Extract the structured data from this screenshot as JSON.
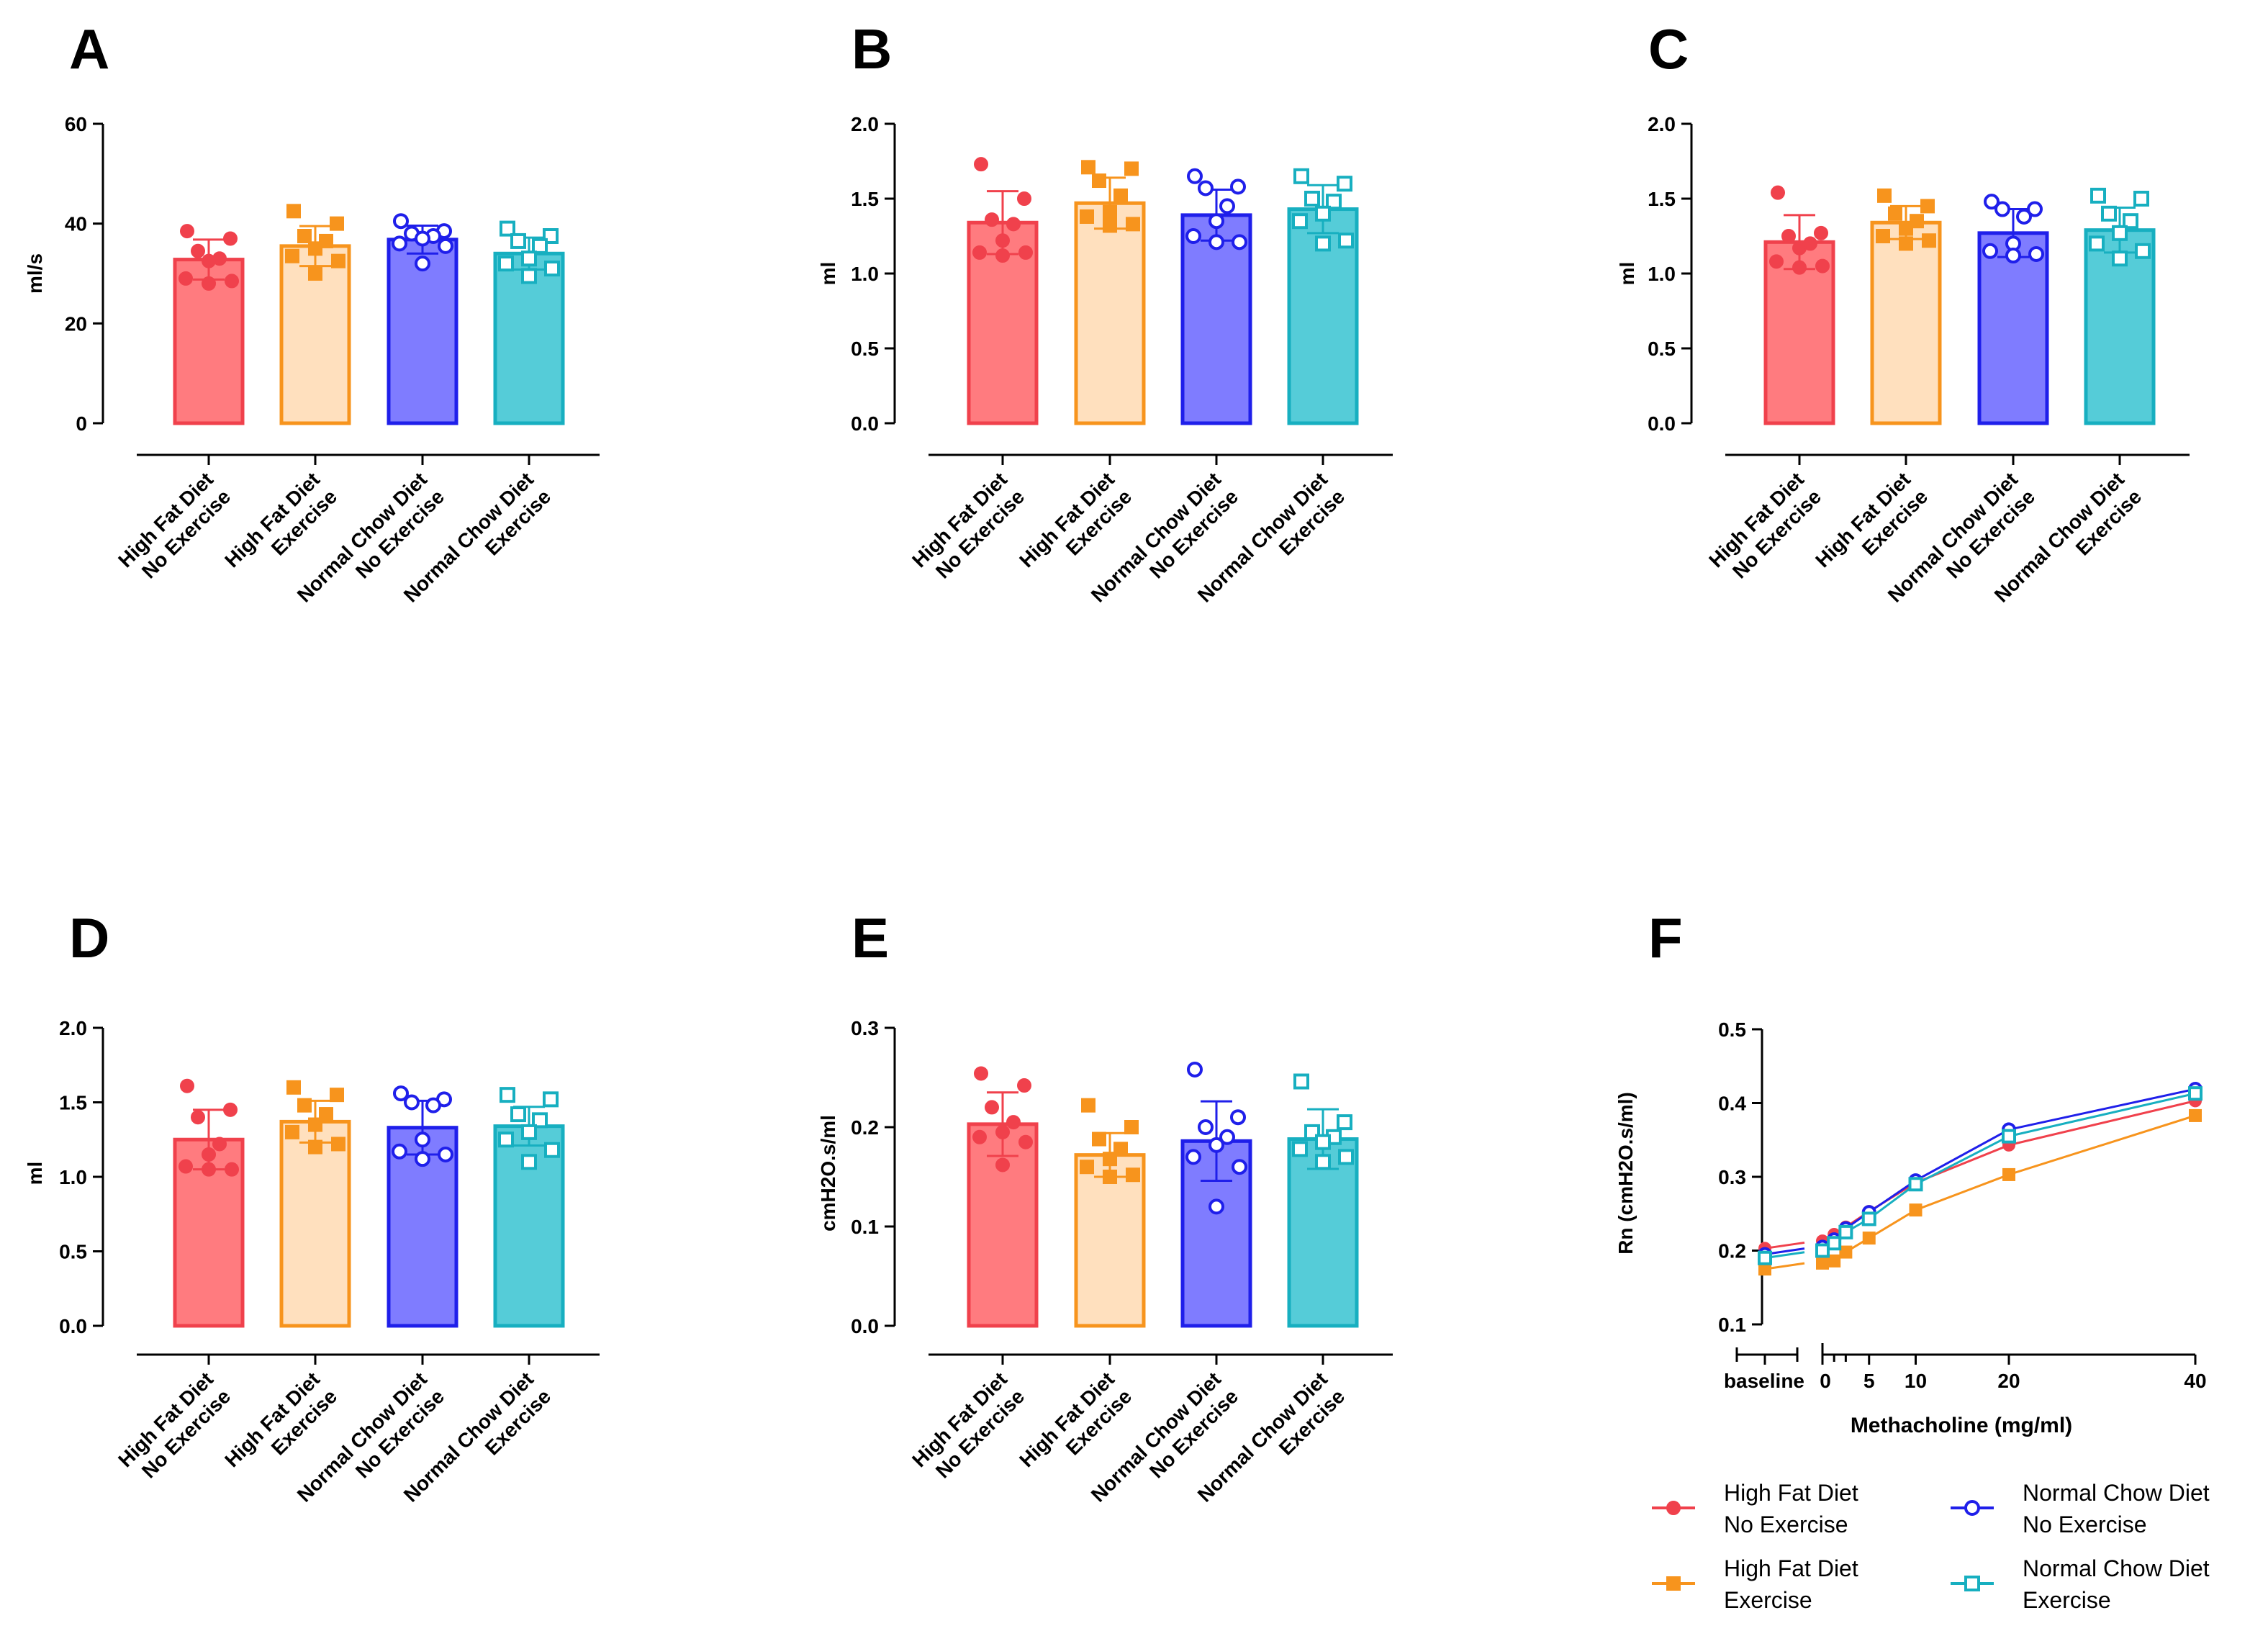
{
  "colors": {
    "hfd_ne": "#F0414C",
    "hfd_ex": "#F7941D",
    "ncd_ne": "#1F1FEA",
    "ncd_ex": "#17AFC0",
    "hfd_ne_fill": "#FF7B7F",
    "hfd_ex_fill": "#FFE0BE",
    "ncd_ne_fill": "#7F7CFF",
    "ncd_ex_fill": "#55CCD8"
  },
  "groups": [
    {
      "key": "hfd_ne",
      "line1": "High Fat Diet",
      "line2": "No Exercise",
      "marker": "filled-circle"
    },
    {
      "key": "hfd_ex",
      "line1": "High Fat Diet",
      "line2": "Exercise",
      "marker": "filled-square"
    },
    {
      "key": "ncd_ne",
      "line1": "Normal Chow Diet",
      "line2": "No Exercise",
      "marker": "open-circle"
    },
    {
      "key": "ncd_ex",
      "line1": "Normal Chow Diet",
      "line2": "Exercise",
      "marker": "open-square"
    }
  ],
  "legend": [
    {
      "key": "hfd_ne",
      "line1": "High Fat Diet",
      "line2": "No Exercise"
    },
    {
      "key": "ncd_ne",
      "line1": "Normal Chow Diet",
      "line2": "No Exercise"
    },
    {
      "key": "hfd_ex",
      "line1": "High Fat Diet",
      "line2": "Exercise"
    },
    {
      "key": "ncd_ex",
      "line1": "Normal Chow Diet",
      "line2": "Exercise"
    }
  ],
  "chart_data": [
    {
      "panel": "A",
      "type": "bar",
      "ylabel": "ml/s",
      "ylim": [
        0,
        60
      ],
      "yticks": [
        0,
        20,
        40,
        60
      ],
      "ytick_labels": [
        "0",
        "20",
        "40",
        "60"
      ],
      "series": [
        {
          "key": "hfd_ne",
          "mean": 32.8,
          "sd": 4.0,
          "points": [
            38.5,
            37.0,
            34.5,
            33.0,
            32.5,
            29.0,
            28.5,
            28.0
          ]
        },
        {
          "key": "hfd_ex",
          "mean": 35.5,
          "sd": 4.0,
          "points": [
            42.5,
            40.0,
            37.5,
            36.5,
            35.0,
            33.5,
            32.5,
            30.0
          ]
        },
        {
          "key": "ncd_ne",
          "mean": 36.8,
          "sd": 2.8,
          "points": [
            40.5,
            38.5,
            38.0,
            37.5,
            37.0,
            36.0,
            35.5,
            32.0
          ]
        },
        {
          "key": "ncd_ex",
          "mean": 34.0,
          "sd": 3.2,
          "points": [
            39.0,
            37.5,
            36.5,
            35.5,
            33.0,
            32.0,
            31.0,
            29.5
          ]
        }
      ]
    },
    {
      "panel": "B",
      "type": "bar",
      "ylabel": "ml",
      "ylim": [
        0,
        2.0
      ],
      "yticks": [
        0,
        0.5,
        1.0,
        1.5,
        2.0
      ],
      "ytick_labels": [
        "0.0",
        "0.5",
        "1.0",
        "1.5",
        "2.0"
      ],
      "series": [
        {
          "key": "hfd_ne",
          "mean": 1.34,
          "sd": 0.21,
          "points": [
            1.73,
            1.5,
            1.36,
            1.33,
            1.22,
            1.14,
            1.14,
            1.12
          ]
        },
        {
          "key": "hfd_ex",
          "mean": 1.47,
          "sd": 0.17,
          "points": [
            1.71,
            1.7,
            1.62,
            1.52,
            1.41,
            1.38,
            1.33,
            1.32
          ]
        },
        {
          "key": "ncd_ne",
          "mean": 1.39,
          "sd": 0.17,
          "points": [
            1.65,
            1.58,
            1.57,
            1.45,
            1.35,
            1.25,
            1.21,
            1.21
          ]
        },
        {
          "key": "ncd_ex",
          "mean": 1.43,
          "sd": 0.16,
          "points": [
            1.65,
            1.6,
            1.5,
            1.48,
            1.4,
            1.35,
            1.22,
            1.2
          ]
        }
      ]
    },
    {
      "panel": "C",
      "type": "bar",
      "ylabel": "ml",
      "ylim": [
        0,
        2.0
      ],
      "yticks": [
        0,
        0.5,
        1.0,
        1.5,
        2.0
      ],
      "ytick_labels": [
        "0.0",
        "0.5",
        "1.0",
        "1.5",
        "2.0"
      ],
      "series": [
        {
          "key": "hfd_ne",
          "mean": 1.21,
          "sd": 0.18,
          "points": [
            1.54,
            1.27,
            1.25,
            1.2,
            1.17,
            1.08,
            1.05,
            1.04
          ]
        },
        {
          "key": "hfd_ex",
          "mean": 1.34,
          "sd": 0.11,
          "points": [
            1.52,
            1.45,
            1.4,
            1.35,
            1.3,
            1.25,
            1.22,
            1.2
          ]
        },
        {
          "key": "ncd_ne",
          "mean": 1.27,
          "sd": 0.16,
          "points": [
            1.48,
            1.43,
            1.43,
            1.38,
            1.2,
            1.15,
            1.13,
            1.12
          ]
        },
        {
          "key": "ncd_ex",
          "mean": 1.29,
          "sd": 0.15,
          "points": [
            1.52,
            1.5,
            1.4,
            1.35,
            1.27,
            1.2,
            1.15,
            1.1
          ]
        }
      ]
    },
    {
      "panel": "D",
      "type": "bar",
      "ylabel": "ml",
      "ylim": [
        0,
        2.0
      ],
      "yticks": [
        0,
        0.5,
        1.0,
        1.5,
        2.0
      ],
      "ytick_labels": [
        "0.0",
        "0.5",
        "1.0",
        "1.5",
        "2.0"
      ],
      "series": [
        {
          "key": "hfd_ne",
          "mean": 1.25,
          "sd": 0.2,
          "points": [
            1.61,
            1.45,
            1.4,
            1.22,
            1.15,
            1.07,
            1.05,
            1.05
          ]
        },
        {
          "key": "hfd_ex",
          "mean": 1.37,
          "sd": 0.14,
          "points": [
            1.6,
            1.55,
            1.48,
            1.42,
            1.35,
            1.3,
            1.22,
            1.2
          ]
        },
        {
          "key": "ncd_ne",
          "mean": 1.33,
          "sd": 0.18,
          "points": [
            1.56,
            1.52,
            1.5,
            1.48,
            1.25,
            1.17,
            1.15,
            1.12
          ]
        },
        {
          "key": "ncd_ex",
          "mean": 1.34,
          "sd": 0.13,
          "points": [
            1.55,
            1.52,
            1.42,
            1.38,
            1.3,
            1.25,
            1.18,
            1.1
          ]
        }
      ]
    },
    {
      "panel": "E",
      "type": "bar",
      "ylabel": "cmH2O.s/ml",
      "ylim": [
        0,
        0.3
      ],
      "yticks": [
        0,
        0.1,
        0.2,
        0.3
      ],
      "ytick_labels": [
        "0.0",
        "0.1",
        "0.2",
        "0.3"
      ],
      "series": [
        {
          "key": "hfd_ne",
          "mean": 0.203,
          "sd": 0.032,
          "points": [
            0.254,
            0.242,
            0.22,
            0.205,
            0.195,
            0.19,
            0.185,
            0.162
          ]
        },
        {
          "key": "hfd_ex",
          "mean": 0.172,
          "sd": 0.022,
          "points": [
            0.222,
            0.2,
            0.188,
            0.178,
            0.168,
            0.16,
            0.152,
            0.15
          ]
        },
        {
          "key": "ncd_ne",
          "mean": 0.186,
          "sd": 0.04,
          "points": [
            0.258,
            0.21,
            0.2,
            0.19,
            0.182,
            0.17,
            0.16,
            0.12
          ]
        },
        {
          "key": "ncd_ex",
          "mean": 0.188,
          "sd": 0.03,
          "points": [
            0.246,
            0.205,
            0.195,
            0.19,
            0.185,
            0.178,
            0.17,
            0.165
          ]
        }
      ]
    },
    {
      "panel": "F",
      "type": "line",
      "ylabel": "Rn (cmH2O.s/ml)",
      "xlabel": "Methacholine (mg/ml)",
      "ylim": [
        0.1,
        0.5
      ],
      "yticks": [
        0.1,
        0.2,
        0.3,
        0.4,
        0.5
      ],
      "ytick_labels": [
        "0.1",
        "0.2",
        "0.3",
        "0.4",
        "0.5"
      ],
      "xlim": [
        0,
        40
      ],
      "xticks": [
        0,
        5,
        10,
        20,
        40
      ],
      "xtick_labels": [
        "0",
        "5",
        "10",
        "20",
        "40"
      ],
      "baseline_label": "baseline",
      "x": [
        0,
        1.25,
        2.5,
        5,
        10,
        20,
        40
      ],
      "series": [
        {
          "key": "hfd_ne",
          "baseline": 0.203,
          "values": [
            0.213,
            0.222,
            0.232,
            0.253,
            0.292,
            0.343,
            0.403
          ]
        },
        {
          "key": "hfd_ex",
          "baseline": 0.175,
          "values": [
            0.183,
            0.186,
            0.198,
            0.217,
            0.255,
            0.303,
            0.383
          ]
        },
        {
          "key": "ncd_ne",
          "baseline": 0.195,
          "values": [
            0.205,
            0.215,
            0.23,
            0.252,
            0.295,
            0.364,
            0.419
          ]
        },
        {
          "key": "ncd_ex",
          "baseline": 0.19,
          "values": [
            0.2,
            0.21,
            0.225,
            0.243,
            0.29,
            0.355,
            0.413
          ]
        }
      ]
    }
  ]
}
